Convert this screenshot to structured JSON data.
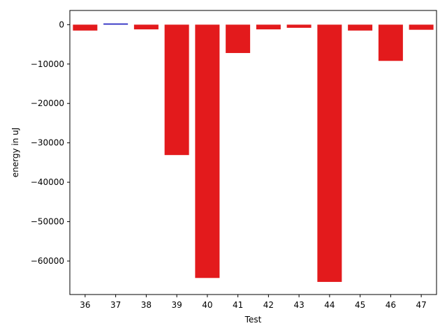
{
  "chart_data": {
    "type": "bar",
    "title": "",
    "xlabel": "Test",
    "ylabel": "energy in uJ",
    "categories": [
      "36",
      "37",
      "38",
      "39",
      "40",
      "41",
      "42",
      "43",
      "44",
      "45",
      "46",
      "47"
    ],
    "values": [
      -1500,
      300,
      -1200,
      -33100,
      -64300,
      -7200,
      -1200,
      -800,
      -65300,
      -1500,
      -9200,
      -1300
    ],
    "bar_colors": [
      "#e31a1c",
      "#1f1fbf",
      "#e31a1c",
      "#e31a1c",
      "#e31a1c",
      "#e31a1c",
      "#e31a1c",
      "#e31a1c",
      "#e31a1c",
      "#e31a1c",
      "#e31a1c",
      "#e31a1c"
    ],
    "ylim": [
      -68500,
      3600
    ],
    "yticks": [
      0,
      -10000,
      -20000,
      -30000,
      -40000,
      -50000,
      -60000
    ],
    "ytick_labels": [
      "0",
      "−10000",
      "−20000",
      "−30000",
      "−40000",
      "−50000",
      "−60000"
    ],
    "grid": false,
    "legend": "none"
  }
}
